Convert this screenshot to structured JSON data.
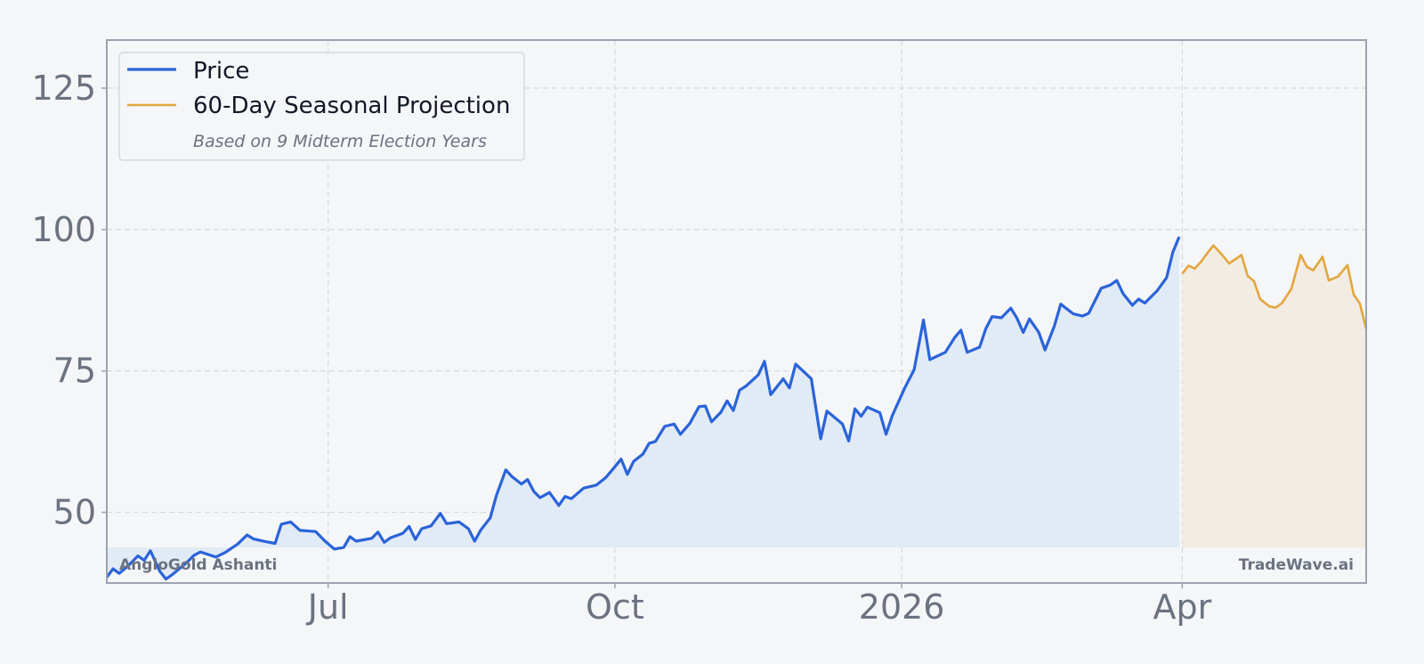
{
  "chart_data": {
    "type": "line",
    "title": "",
    "xlabel": "",
    "ylabel": "",
    "x_range": [
      "2025-04-21",
      "2026-05-30"
    ],
    "ylim": [
      37.5,
      133.5
    ],
    "x_ticks": [
      {
        "date": "2025-07-01",
        "label": "Jul"
      },
      {
        "date": "2025-10-01",
        "label": "Oct"
      },
      {
        "date": "2026-01-01",
        "label": "2026"
      },
      {
        "date": "2026-04-01",
        "label": "Apr"
      }
    ],
    "y_ticks": [
      50,
      75,
      100,
      125
    ],
    "grid": true,
    "legend_position": "top-left",
    "legend_note": "Based on 9 Midterm Election Years",
    "watermark_left": "AngloGold Ashanti",
    "watermark_right": "TradeWave.ai",
    "colors": {
      "price": "#2b63d9",
      "price_fill": "#dde9f6",
      "projection": "#e3a63d",
      "projection_fill": "#f1ebe2",
      "grid": "#d5d9de",
      "frame": "#9ca3af"
    },
    "series": [
      {
        "name": "Price",
        "points": [
          [
            "2025-04-21",
            38.5
          ],
          [
            "2025-04-23",
            40.0
          ],
          [
            "2025-04-25",
            39.2
          ],
          [
            "2025-04-28",
            40.6
          ],
          [
            "2025-05-01",
            42.3
          ],
          [
            "2025-05-03",
            41.5
          ],
          [
            "2025-05-05",
            43.2
          ],
          [
            "2025-05-08",
            39.6
          ],
          [
            "2025-05-10",
            38.2
          ],
          [
            "2025-05-12",
            39.0
          ],
          [
            "2025-05-16",
            40.8
          ],
          [
            "2025-05-19",
            42.4
          ],
          [
            "2025-05-21",
            43.0
          ],
          [
            "2025-05-26",
            42.1
          ],
          [
            "2025-05-29",
            42.9
          ],
          [
            "2025-06-02",
            44.4
          ],
          [
            "2025-06-05",
            46.0
          ],
          [
            "2025-06-07",
            45.3
          ],
          [
            "2025-06-11",
            44.8
          ],
          [
            "2025-06-14",
            44.5
          ],
          [
            "2025-06-16",
            47.9
          ],
          [
            "2025-06-19",
            48.3
          ],
          [
            "2025-06-22",
            46.8
          ],
          [
            "2025-06-27",
            46.6
          ],
          [
            "2025-06-30",
            44.9
          ],
          [
            "2025-07-03",
            43.5
          ],
          [
            "2025-07-06",
            43.8
          ],
          [
            "2025-07-08",
            45.7
          ],
          [
            "2025-07-10",
            44.9
          ],
          [
            "2025-07-15",
            45.4
          ],
          [
            "2025-07-17",
            46.5
          ],
          [
            "2025-07-19",
            44.7
          ],
          [
            "2025-07-21",
            45.5
          ],
          [
            "2025-07-25",
            46.3
          ],
          [
            "2025-07-27",
            47.5
          ],
          [
            "2025-07-29",
            45.2
          ],
          [
            "2025-07-31",
            47.1
          ],
          [
            "2025-08-03",
            47.6
          ],
          [
            "2025-08-06",
            49.8
          ],
          [
            "2025-08-08",
            48.0
          ],
          [
            "2025-08-12",
            48.3
          ],
          [
            "2025-08-15",
            47.1
          ],
          [
            "2025-08-17",
            44.9
          ],
          [
            "2025-08-19",
            46.9
          ],
          [
            "2025-08-22",
            49.0
          ],
          [
            "2025-08-24",
            53.0
          ],
          [
            "2025-08-27",
            57.5
          ],
          [
            "2025-08-29",
            56.3
          ],
          [
            "2025-09-01",
            55.0
          ],
          [
            "2025-09-03",
            55.8
          ],
          [
            "2025-09-05",
            53.7
          ],
          [
            "2025-09-07",
            52.6
          ],
          [
            "2025-09-10",
            53.5
          ],
          [
            "2025-09-13",
            51.2
          ],
          [
            "2025-09-15",
            52.8
          ],
          [
            "2025-09-17",
            52.4
          ],
          [
            "2025-09-21",
            54.3
          ],
          [
            "2025-09-25",
            54.8
          ],
          [
            "2025-09-28",
            56.1
          ],
          [
            "2025-09-30",
            57.4
          ],
          [
            "2025-10-03",
            59.4
          ],
          [
            "2025-10-05",
            56.7
          ],
          [
            "2025-10-07",
            59.0
          ],
          [
            "2025-10-10",
            60.3
          ],
          [
            "2025-10-12",
            62.2
          ],
          [
            "2025-10-14",
            62.5
          ],
          [
            "2025-10-17",
            65.2
          ],
          [
            "2025-10-20",
            65.6
          ],
          [
            "2025-10-22",
            63.8
          ],
          [
            "2025-10-25",
            65.7
          ],
          [
            "2025-10-28",
            68.7
          ],
          [
            "2025-10-30",
            68.8
          ],
          [
            "2025-11-01",
            66.0
          ],
          [
            "2025-11-04",
            67.7
          ],
          [
            "2025-11-06",
            69.7
          ],
          [
            "2025-11-08",
            68.0
          ],
          [
            "2025-11-10",
            71.6
          ],
          [
            "2025-11-12",
            72.3
          ],
          [
            "2025-11-16",
            74.3
          ],
          [
            "2025-11-18",
            76.7
          ],
          [
            "2025-11-20",
            70.8
          ],
          [
            "2025-11-24",
            73.6
          ],
          [
            "2025-11-26",
            72.0
          ],
          [
            "2025-11-28",
            76.2
          ],
          [
            "2025-12-03",
            73.6
          ],
          [
            "2025-12-06",
            63.0
          ],
          [
            "2025-12-08",
            67.9
          ],
          [
            "2025-12-13",
            65.6
          ],
          [
            "2025-12-15",
            62.6
          ],
          [
            "2025-12-17",
            68.3
          ],
          [
            "2025-12-19",
            67.0
          ],
          [
            "2025-12-21",
            68.6
          ],
          [
            "2025-12-25",
            67.6
          ],
          [
            "2025-12-27",
            63.8
          ],
          [
            "2025-12-29",
            67.1
          ],
          [
            "2026-01-02",
            72.0
          ],
          [
            "2026-01-05",
            75.2
          ],
          [
            "2026-01-08",
            84.0
          ],
          [
            "2026-01-10",
            77.0
          ],
          [
            "2026-01-15",
            78.3
          ],
          [
            "2026-01-18",
            80.9
          ],
          [
            "2026-01-20",
            82.2
          ],
          [
            "2026-01-22",
            78.3
          ],
          [
            "2026-01-26",
            79.2
          ],
          [
            "2026-01-28",
            82.5
          ],
          [
            "2026-01-30",
            84.6
          ],
          [
            "2026-02-02",
            84.4
          ],
          [
            "2026-02-05",
            86.1
          ],
          [
            "2026-02-07",
            84.3
          ],
          [
            "2026-02-09",
            81.8
          ],
          [
            "2026-02-11",
            84.2
          ],
          [
            "2026-02-14",
            81.8
          ],
          [
            "2026-02-16",
            78.7
          ],
          [
            "2026-02-19",
            83.0
          ],
          [
            "2026-02-21",
            86.8
          ],
          [
            "2026-02-25",
            85.1
          ],
          [
            "2026-02-28",
            84.7
          ],
          [
            "2026-03-02",
            85.2
          ],
          [
            "2026-03-06",
            89.6
          ],
          [
            "2026-03-09",
            90.2
          ],
          [
            "2026-03-11",
            91.0
          ],
          [
            "2026-03-13",
            88.7
          ],
          [
            "2026-03-16",
            86.6
          ],
          [
            "2026-03-18",
            87.7
          ],
          [
            "2026-03-20",
            87.0
          ],
          [
            "2026-03-24",
            89.2
          ],
          [
            "2026-03-27",
            91.5
          ],
          [
            "2026-03-29",
            96.0
          ],
          [
            "2026-03-31",
            98.7
          ]
        ]
      }
    ],
    "price_points_part2": [
      [
        "2026-01-02",
        72.0
      ]
    ],
    "projection": {
      "name": "60-Day Seasonal Projection",
      "points": [
        [
          "2026-04-01",
          92.2
        ],
        [
          "2026-04-03",
          93.6
        ],
        [
          "2026-04-05",
          93.1
        ],
        [
          "2026-04-07",
          94.3
        ],
        [
          "2026-04-09",
          95.8
        ],
        [
          "2026-04-11",
          97.2
        ],
        [
          "2026-04-14",
          95.4
        ],
        [
          "2026-04-16",
          94.0
        ],
        [
          "2026-04-20",
          95.5
        ],
        [
          "2026-04-22",
          91.8
        ],
        [
          "2026-04-24",
          90.9
        ],
        [
          "2026-04-26",
          87.7
        ],
        [
          "2026-04-29",
          86.4
        ],
        [
          "2026-05-01",
          86.2
        ],
        [
          "2026-05-03",
          87.0
        ],
        [
          "2026-05-06",
          89.5
        ],
        [
          "2026-05-09",
          95.5
        ],
        [
          "2026-05-11",
          93.4
        ],
        [
          "2026-05-13",
          92.8
        ],
        [
          "2026-05-16",
          95.2
        ],
        [
          "2026-05-18",
          91.0
        ],
        [
          "2026-05-21",
          91.7
        ],
        [
          "2026-05-24",
          93.7
        ],
        [
          "2026-05-26",
          88.5
        ],
        [
          "2026-05-28",
          86.9
        ],
        [
          "2026-05-30",
          82.4
        ]
      ]
    }
  }
}
